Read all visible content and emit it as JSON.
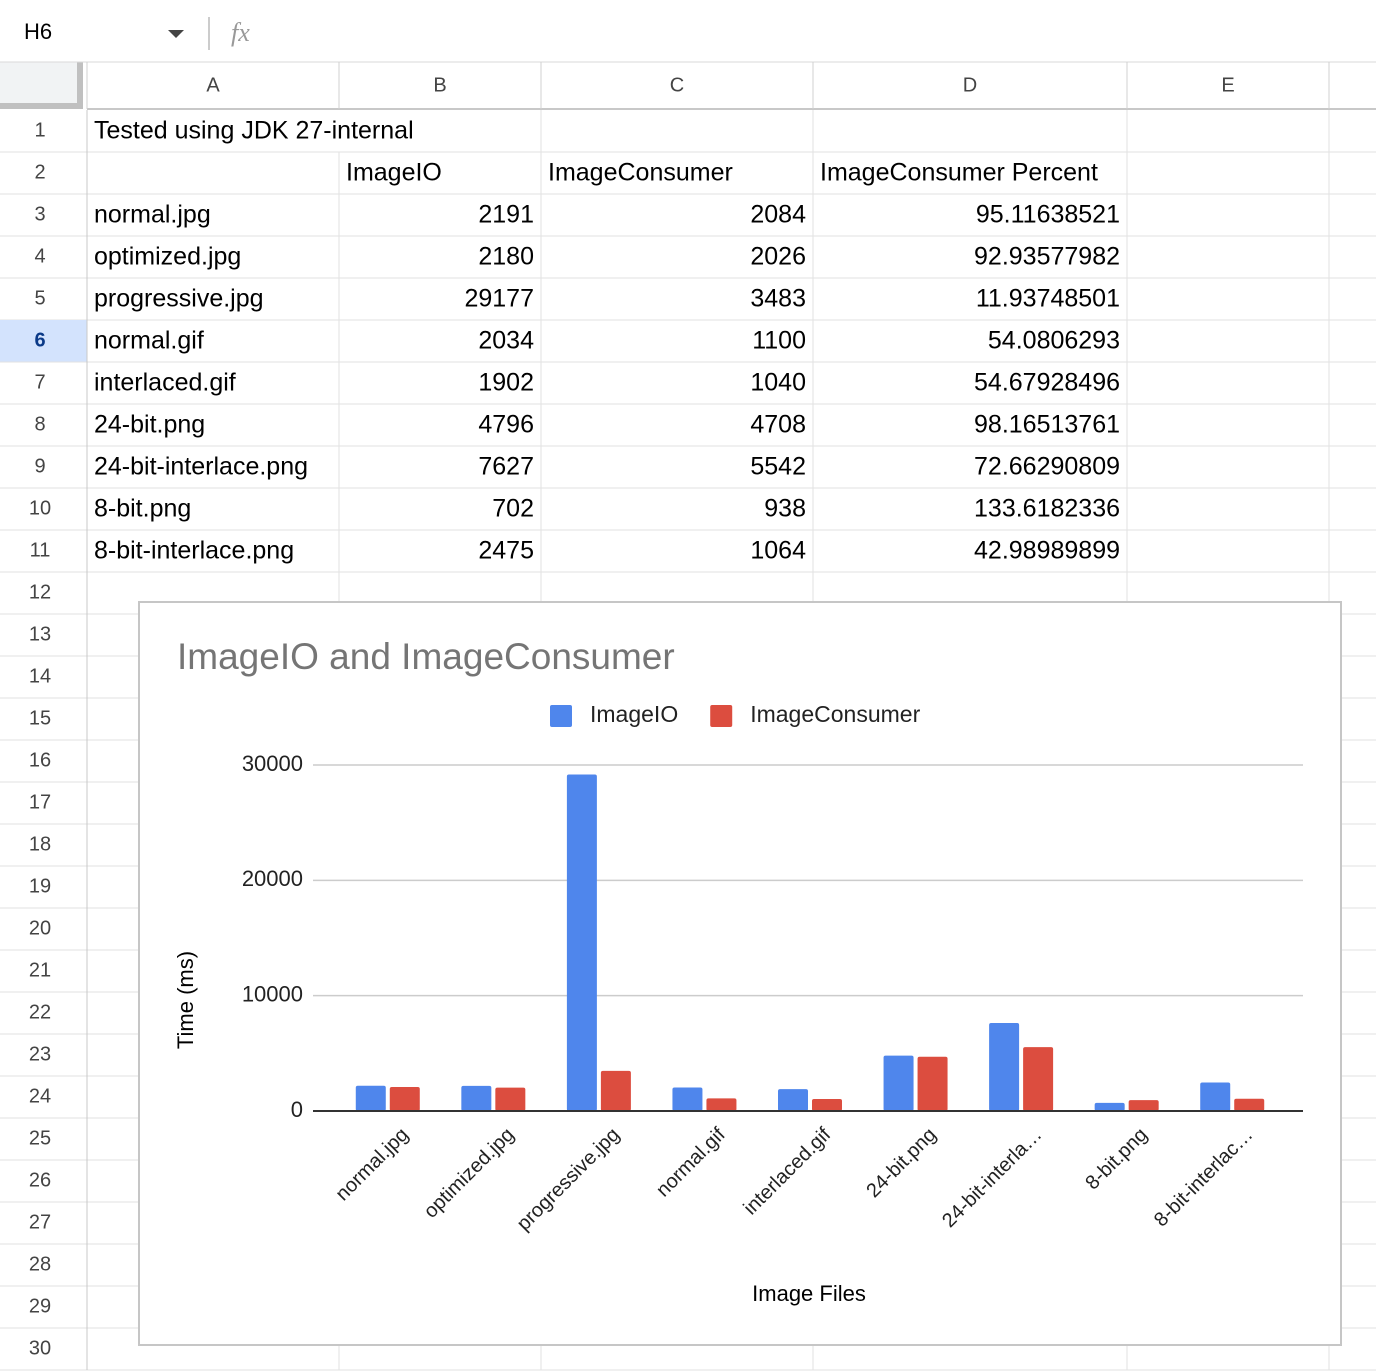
{
  "name_box": "H6",
  "formula_label": "fx",
  "columns": [
    "A",
    "B",
    "C",
    "D",
    "E"
  ],
  "row_headers": [
    1,
    2,
    3,
    4,
    5,
    6,
    7,
    8,
    9,
    10,
    11,
    12,
    13,
    14,
    15,
    16,
    17,
    18,
    19,
    20,
    21,
    22,
    23,
    24,
    25,
    26,
    27,
    28,
    29,
    30
  ],
  "selected_row": 6,
  "table": {
    "rows": [
      {
        "A": "Tested using JDK 27-internal"
      },
      {
        "B": "ImageIO",
        "C": "ImageConsumer",
        "D": "ImageConsumer Percent"
      },
      {
        "A": "normal.jpg",
        "B": 2191,
        "C": 2084,
        "D": 95.11638521
      },
      {
        "A": "optimized.jpg",
        "B": 2180,
        "C": 2026,
        "D": 92.93577982
      },
      {
        "A": "progressive.jpg",
        "B": 29177,
        "C": 3483,
        "D": 11.93748501
      },
      {
        "A": "normal.gif",
        "B": 2034,
        "C": 1100,
        "D": 54.0806293
      },
      {
        "A": "interlaced.gif",
        "B": 1902,
        "C": 1040,
        "D": 54.67928496
      },
      {
        "A": "24-bit.png",
        "B": 4796,
        "C": 4708,
        "D": 98.16513761
      },
      {
        "A": "24-bit-interlace.png",
        "B": 7627,
        "C": 5542,
        "D": 72.66290809
      },
      {
        "A": "8-bit.png",
        "B": 702,
        "C": 938,
        "D": 133.6182336
      },
      {
        "A": "8-bit-interlace.png",
        "B": 2475,
        "C": 1064,
        "D": 42.98989899
      }
    ]
  },
  "chart_data": {
    "type": "bar",
    "title": "ImageIO and ImageConsumer",
    "x_label": "Image Files",
    "y_label": "Time (ms)",
    "categories": [
      "normal.jpg",
      "optimized.jpg",
      "progressive.jpg",
      "normal.gif",
      "interlaced.gif",
      "24-bit.png",
      "24-bit-interla…",
      "8-bit.png",
      "8-bit-interlac…"
    ],
    "series": [
      {
        "name": "ImageIO",
        "color": "#4f86ec",
        "values": [
          2191,
          2180,
          29177,
          2034,
          1902,
          4796,
          7627,
          702,
          2475
        ]
      },
      {
        "name": "ImageConsumer",
        "color": "#dc4d3f",
        "values": [
          2084,
          2026,
          3483,
          1100,
          1040,
          4708,
          5542,
          938,
          1064
        ]
      }
    ],
    "ylim": [
      0,
      30000
    ],
    "yticks": [
      0,
      10000,
      20000,
      30000
    ],
    "grid": true,
    "legend": "top"
  }
}
